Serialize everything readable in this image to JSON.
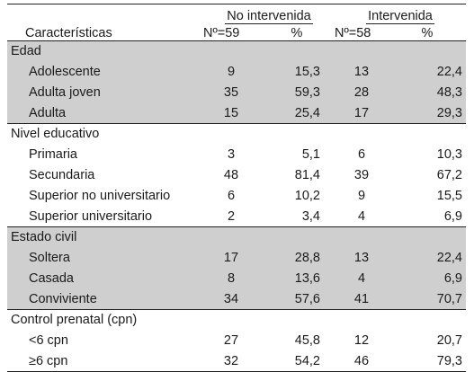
{
  "header": {
    "characteristics": "Características",
    "group_a": "No intervenida",
    "group_b": "Intervenida",
    "n_a": "Nº=59",
    "pct_a": "%",
    "n_b": "Nº=58",
    "pct_b": "%"
  },
  "sections": [
    {
      "title": "Edad",
      "shaded": true,
      "rows": [
        {
          "label": "Adolescente",
          "n_a": "9",
          "pct_a": "15,3",
          "n_b": "13",
          "pct_b": "22,4"
        },
        {
          "label": "Adulta joven",
          "n_a": "35",
          "pct_a": "59,3",
          "n_b": "28",
          "pct_b": "48,3"
        },
        {
          "label": "Adulta",
          "n_a": "15",
          "pct_a": "25,4",
          "n_b": "17",
          "pct_b": "29,3"
        }
      ]
    },
    {
      "title": "Nivel educativo",
      "shaded": false,
      "rows": [
        {
          "label": "Primaria",
          "n_a": "3",
          "pct_a": "5,1",
          "n_b": "6",
          "pct_b": "10,3"
        },
        {
          "label": "Secundaria",
          "n_a": "48",
          "pct_a": "81,4",
          "n_b": "39",
          "pct_b": "67,2"
        },
        {
          "label": "Superior no universitario",
          "n_a": "6",
          "pct_a": "10,2",
          "n_b": "9",
          "pct_b": "15,5"
        },
        {
          "label": "Superior universitario",
          "n_a": "2",
          "pct_a": "3,4",
          "n_b": "4",
          "pct_b": "6,9"
        }
      ]
    },
    {
      "title": "Estado civil",
      "shaded": true,
      "rows": [
        {
          "label": "Soltera",
          "n_a": "17",
          "pct_a": "28,8",
          "n_b": "13",
          "pct_b": "22,4"
        },
        {
          "label": "Casada",
          "n_a": "8",
          "pct_a": "13,6",
          "n_b": "4",
          "pct_b": "6,9"
        },
        {
          "label": "Conviviente",
          "n_a": "34",
          "pct_a": "57,6",
          "n_b": "41",
          "pct_b": "70,7"
        }
      ]
    },
    {
      "title": "Control prenatal (cpn)",
      "shaded": false,
      "rows": [
        {
          "label": "<6 cpn",
          "n_a": "27",
          "pct_a": "45,8",
          "n_b": "12",
          "pct_b": "20,7"
        },
        {
          "label": "≥6 cpn",
          "n_a": "32",
          "pct_a": "54,2",
          "n_b": "46",
          "pct_b": "79,3"
        }
      ]
    }
  ]
}
